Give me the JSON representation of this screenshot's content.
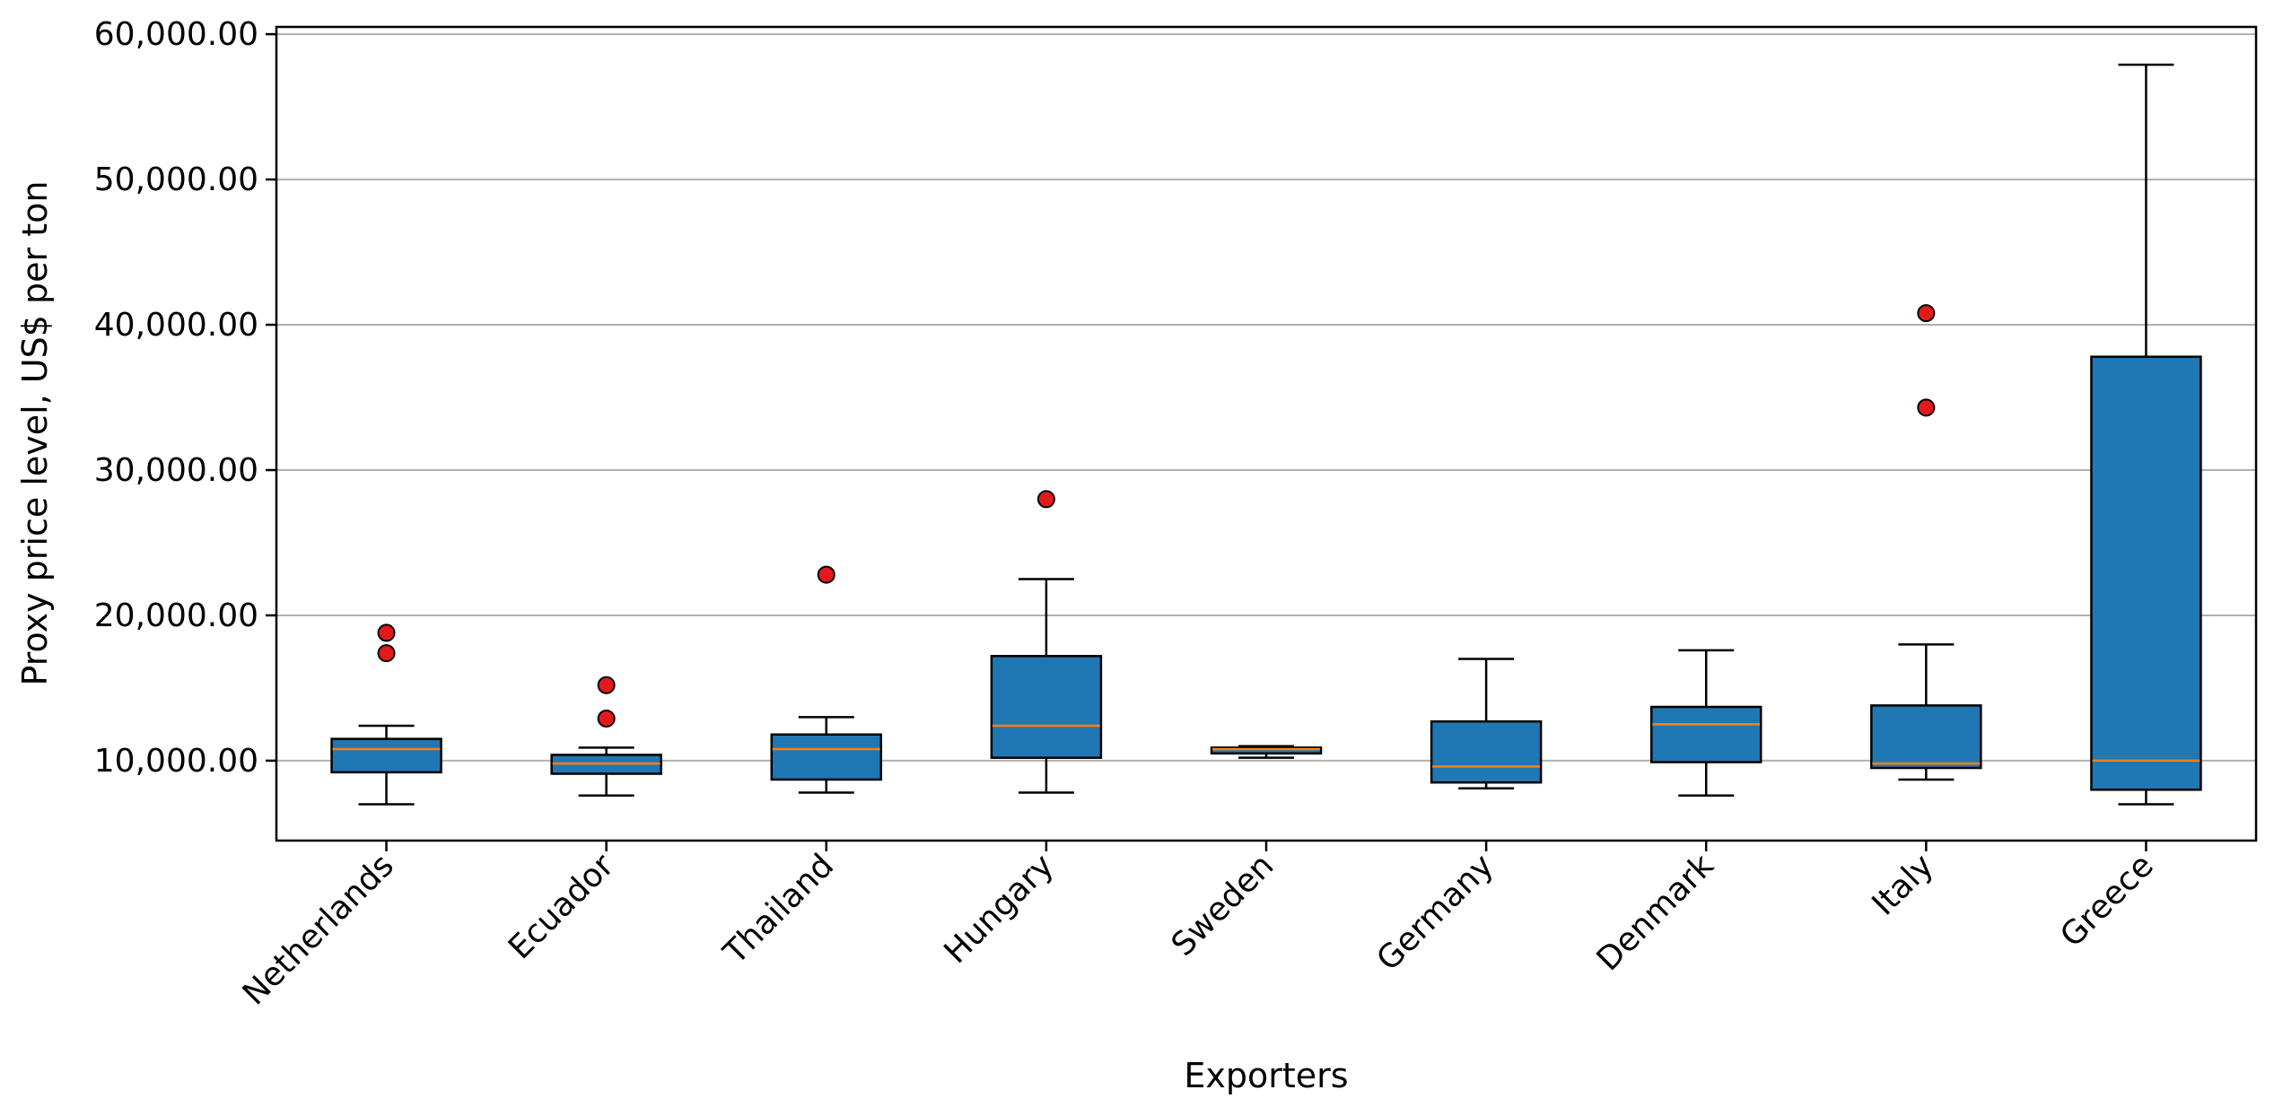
{
  "chart_data": {
    "type": "box",
    "xlabel": "Exporters",
    "ylabel": "Proxy price level, US$ per ton",
    "ylim": [
      4500,
      60500
    ],
    "yticks": [
      10000,
      20000,
      30000,
      40000,
      50000,
      60000
    ],
    "ytick_labels": [
      "10,000.00",
      "20,000.00",
      "30,000.00",
      "40,000.00",
      "50,000.00",
      "60,000.00"
    ],
    "grid": "horizontal",
    "colors": {
      "box": "#1f77b4",
      "median": "#ff7f0e",
      "outlier": "#e31a1c",
      "outline": "#000000"
    },
    "categories": [
      "Netherlands",
      "Ecuador",
      "Thailand",
      "Hungary",
      "Sweden",
      "Germany",
      "Denmark",
      "Italy",
      "Greece"
    ],
    "boxes": [
      {
        "category": "Netherlands",
        "whisker_low": 7000,
        "q1": 9200,
        "median": 10800,
        "q3": 11500,
        "whisker_high": 12400,
        "outliers": [
          17400,
          18800
        ]
      },
      {
        "category": "Ecuador",
        "whisker_low": 7600,
        "q1": 9100,
        "median": 9800,
        "q3": 10400,
        "whisker_high": 10900,
        "outliers": [
          12900,
          15200
        ]
      },
      {
        "category": "Thailand",
        "whisker_low": 7800,
        "q1": 8700,
        "median": 10800,
        "q3": 11800,
        "whisker_high": 13000,
        "outliers": [
          22800
        ]
      },
      {
        "category": "Hungary",
        "whisker_low": 7800,
        "q1": 10200,
        "median": 12400,
        "q3": 17200,
        "whisker_high": 22500,
        "outliers": [
          28000
        ]
      },
      {
        "category": "Sweden",
        "whisker_low": 10200,
        "q1": 10500,
        "median": 10800,
        "q3": 10900,
        "whisker_high": 11000,
        "outliers": []
      },
      {
        "category": "Germany",
        "whisker_low": 8100,
        "q1": 8500,
        "median": 9600,
        "q3": 12700,
        "whisker_high": 17000,
        "outliers": []
      },
      {
        "category": "Denmark",
        "whisker_low": 7600,
        "q1": 9900,
        "median": 12500,
        "q3": 13700,
        "whisker_high": 17600,
        "outliers": []
      },
      {
        "category": "Italy",
        "whisker_low": 8700,
        "q1": 9500,
        "median": 9800,
        "q3": 13800,
        "whisker_high": 18000,
        "outliers": [
          34300,
          40800
        ]
      },
      {
        "category": "Greece",
        "whisker_low": 7000,
        "q1": 8000,
        "median": 10000,
        "q3": 37800,
        "whisker_high": 57900,
        "outliers": []
      }
    ]
  }
}
